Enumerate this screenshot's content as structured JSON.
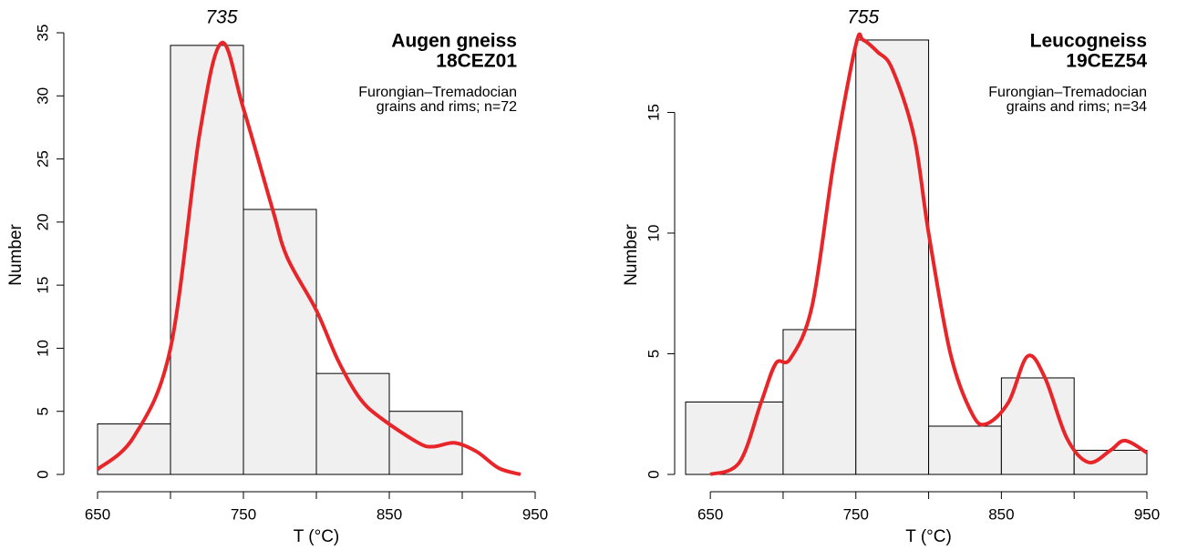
{
  "chart_data": [
    {
      "type": "histogram",
      "title": "Augen gneiss",
      "subtitle": "18CEZ01",
      "notes": [
        "Furongian–Tremadocian",
        "grains and rims; n=72"
      ],
      "annotation": "735",
      "xlabel": "T (°C)",
      "ylabel": "Number",
      "bins": [
        650,
        700,
        750,
        800,
        850,
        900
      ],
      "values": [
        4,
        34,
        21,
        8,
        5
      ],
      "color": "#f0f0f0",
      "xlim": [
        650,
        950
      ],
      "xticks": [
        650,
        750,
        850,
        950
      ],
      "xminor": [
        700,
        800,
        900
      ],
      "ylim": [
        0,
        35
      ],
      "yticks": [
        0,
        5,
        10,
        15,
        20,
        25,
        30,
        35
      ],
      "curve": {
        "color": "#e8262a",
        "x": [
          650,
          675,
          700,
          720,
          735,
          750,
          770,
          780,
          800,
          815,
          830,
          845,
          870,
          880,
          895,
          910,
          925,
          940
        ],
        "values": [
          0.4,
          3,
          10,
          27,
          34.2,
          29,
          21,
          17.2,
          13,
          9,
          6,
          4.4,
          2.5,
          2.2,
          2.5,
          1.8,
          0.5,
          0
        ]
      }
    },
    {
      "type": "histogram",
      "title": "Leucogneiss",
      "subtitle": "19CEZ54",
      "notes": [
        "Furongian–Tremadocian",
        "grains and rims; n=34"
      ],
      "annotation": "755",
      "xlabel": "T (°C)",
      "ylabel": "Number",
      "bins": [
        633,
        700,
        750,
        800,
        850,
        900,
        950
      ],
      "values": [
        3,
        6,
        18,
        2,
        4,
        1
      ],
      "color": "#f0f0f0",
      "xlim": [
        633,
        950
      ],
      "xticks": [
        650,
        750,
        850,
        950
      ],
      "xminor": [
        700,
        800,
        900
      ],
      "ylim": [
        0,
        18.3
      ],
      "yticks": [
        0,
        5,
        10,
        15
      ],
      "curve": {
        "color": "#e8262a",
        "x": [
          650,
          670,
          685,
          695,
          705,
          720,
          735,
          750,
          755,
          765,
          775,
          790,
          800,
          815,
          830,
          840,
          855,
          868,
          880,
          895,
          910,
          925,
          935,
          950
        ],
        "values": [
          0,
          0.5,
          3,
          4.6,
          4.8,
          7,
          13,
          17.8,
          18,
          17.5,
          16.8,
          14,
          10,
          5,
          2.5,
          2.1,
          3,
          4.9,
          4,
          1.5,
          0.5,
          1,
          1.4,
          0.9
        ]
      }
    }
  ]
}
